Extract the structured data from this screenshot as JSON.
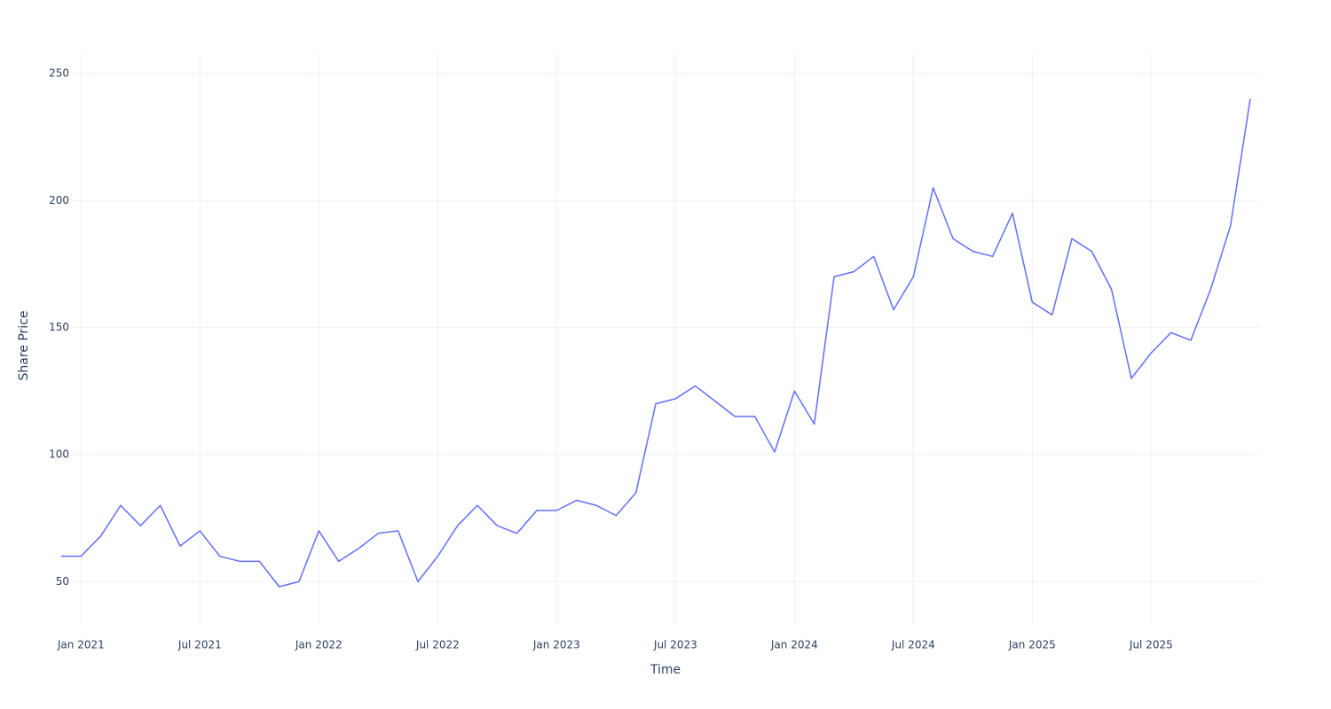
{
  "chart_data": {
    "type": "line",
    "x_label": "Time",
    "y_label": "Share Price",
    "x": [
      "2020-12",
      "2021-01",
      "2021-02",
      "2021-03",
      "2021-04",
      "2021-05",
      "2021-06",
      "2021-07",
      "2021-08",
      "2021-09",
      "2021-10",
      "2021-11",
      "2021-12",
      "2022-01",
      "2022-02",
      "2022-03",
      "2022-04",
      "2022-05",
      "2022-06",
      "2022-07",
      "2022-08",
      "2022-09",
      "2022-10",
      "2022-11",
      "2022-12",
      "2023-01",
      "2023-02",
      "2023-03",
      "2023-04",
      "2023-05",
      "2023-06",
      "2023-07",
      "2023-08",
      "2023-09",
      "2023-10",
      "2023-11",
      "2023-12",
      "2024-01",
      "2024-02",
      "2024-03",
      "2024-04",
      "2024-05",
      "2024-06",
      "2024-07",
      "2024-08",
      "2024-09",
      "2024-10",
      "2024-11",
      "2024-12",
      "2025-01",
      "2025-02",
      "2025-03",
      "2025-04",
      "2025-05",
      "2025-06",
      "2025-07",
      "2025-08",
      "2025-09",
      "2025-10",
      "2025-11",
      "2025-12"
    ],
    "series": [
      {
        "name": "Share Price",
        "color": "#636efa",
        "values": [
          60,
          60,
          68,
          80,
          72,
          80,
          64,
          70,
          60,
          58,
          58,
          48,
          50,
          70,
          58,
          63,
          69,
          70,
          50,
          60,
          72,
          80,
          72,
          69,
          78,
          78,
          82,
          80,
          76,
          85,
          120,
          122,
          127,
          121,
          115,
          115,
          101,
          125,
          112,
          170,
          172,
          178,
          157,
          170,
          205,
          185,
          180,
          178,
          195,
          160,
          155,
          185,
          180,
          165,
          130,
          140,
          148,
          145,
          165,
          190,
          240
        ]
      }
    ],
    "xlim": [
      "2020-12",
      "2025-12"
    ],
    "xticks": [
      {
        "value": "2021-01",
        "label": "Jan 2021"
      },
      {
        "value": "2021-07",
        "label": "Jul 2021"
      },
      {
        "value": "2022-01",
        "label": "Jan 2022"
      },
      {
        "value": "2022-07",
        "label": "Jul 2022"
      },
      {
        "value": "2023-01",
        "label": "Jan 2023"
      },
      {
        "value": "2023-07",
        "label": "Jul 2023"
      },
      {
        "value": "2024-01",
        "label": "Jan 2024"
      },
      {
        "value": "2024-07",
        "label": "Jul 2024"
      },
      {
        "value": "2025-01",
        "label": "Jan 2025"
      },
      {
        "value": "2025-07",
        "label": "Jul 2025"
      }
    ],
    "ylim": [
      33,
      258
    ],
    "yticks": [
      50,
      100,
      150,
      200,
      250
    ],
    "grid": true
  }
}
